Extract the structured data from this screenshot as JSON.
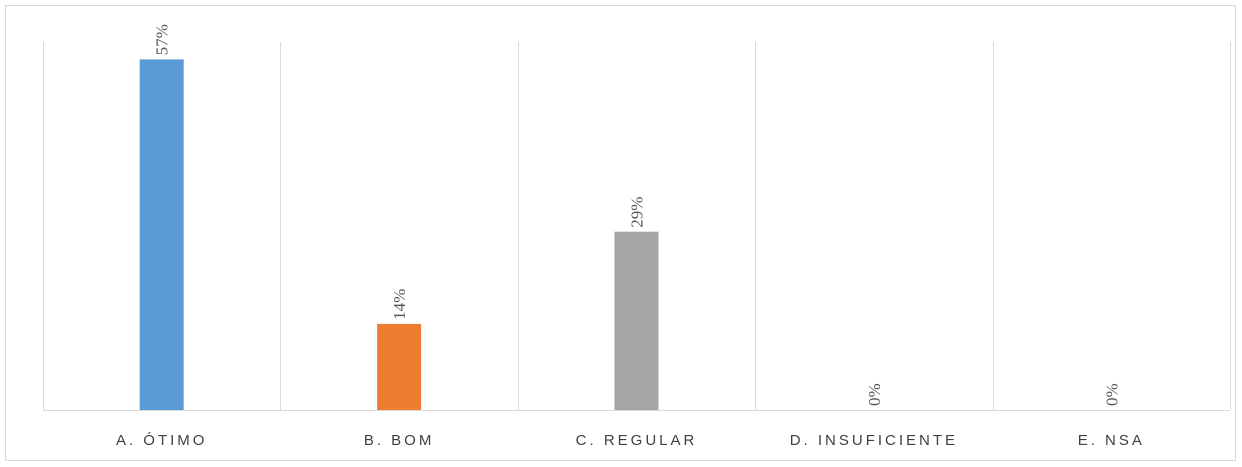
{
  "chart_data": {
    "type": "bar",
    "title": "",
    "xlabel": "",
    "ylabel": "",
    "categories": [
      "A. ÓTIMO",
      "B. BOM",
      "C. REGULAR",
      "D. INSUFICIENTE",
      "E. NSA"
    ],
    "values": [
      57,
      14,
      29,
      0,
      0
    ],
    "value_labels": [
      "57%",
      "14%",
      "29%",
      "0%",
      "0%"
    ],
    "colors": [
      "#5B9BD5",
      "#ED7D31",
      "#A5A5A5",
      "#FFC000",
      "#4472C4"
    ],
    "ylim": [
      0,
      60
    ],
    "grid": "vertical category separators",
    "legend": "none"
  }
}
